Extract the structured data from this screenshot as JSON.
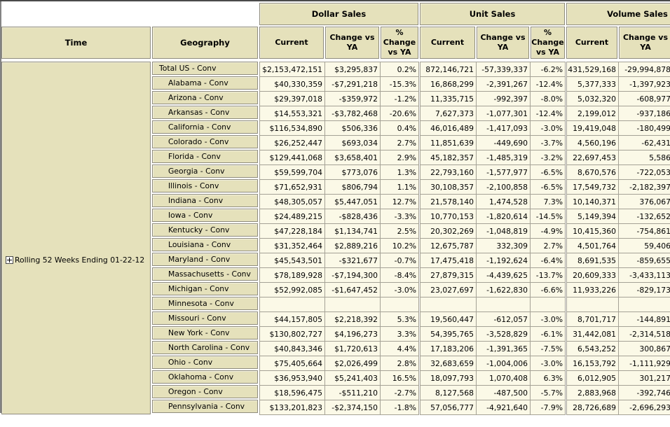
{
  "colors": {
    "header_fill": "#e5e1bb",
    "data_fill": "#fbf9e7",
    "cell_border": "#8f8c7e",
    "grid_line": "#a5a296",
    "frame_top": "#4a4a4a",
    "frame_left": "#838383",
    "text": "#000000"
  },
  "header": {
    "time": "Time",
    "geography": "Geography"
  },
  "groups": [
    {
      "key": "d",
      "label": "Dollar Sales",
      "cols": [
        "Current",
        "Change vs YA",
        "% Change vs YA"
      ]
    },
    {
      "key": "u",
      "label": "Unit Sales",
      "cols": [
        "Current",
        "Change vs YA",
        "% Change vs YA"
      ]
    },
    {
      "key": "v",
      "label": "Volume Sales",
      "cols": [
        "Current",
        "Change vs YA"
      ]
    }
  ],
  "time_member": {
    "label": "Rolling 52 Weeks Ending 01-22-12",
    "expand_icon": "plus-box"
  },
  "rows": [
    {
      "geo": "Total US - Conv",
      "level": 0,
      "d": [
        "$2,153,472,151",
        "$3,295,837",
        "0.2%"
      ],
      "u": [
        "872,146,721",
        "-57,339,337",
        "-6.2%"
      ],
      "v": [
        "431,529,168",
        "-29,994,878"
      ]
    },
    {
      "geo": "Alabama - Conv",
      "level": 1,
      "d": [
        "$40,330,359",
        "-$7,291,218",
        "-15.3%"
      ],
      "u": [
        "16,868,299",
        "-2,391,267",
        "-12.4%"
      ],
      "v": [
        "5,377,333",
        "-1,397,923"
      ]
    },
    {
      "geo": "Arizona - Conv",
      "level": 1,
      "d": [
        "$29,397,018",
        "-$359,972",
        "-1.2%"
      ],
      "u": [
        "11,335,715",
        "-992,397",
        "-8.0%"
      ],
      "v": [
        "5,032,320",
        "-608,977"
      ]
    },
    {
      "geo": "Arkansas - Conv",
      "level": 1,
      "d": [
        "$14,553,321",
        "-$3,782,468",
        "-20.6%"
      ],
      "u": [
        "7,627,373",
        "-1,077,301",
        "-12.4%"
      ],
      "v": [
        "2,199,012",
        "-937,186"
      ]
    },
    {
      "geo": "California - Conv",
      "level": 1,
      "d": [
        "$116,534,890",
        "$506,336",
        "0.4%"
      ],
      "u": [
        "46,016,489",
        "-1,417,093",
        "-3.0%"
      ],
      "v": [
        "19,419,048",
        "-180,499"
      ]
    },
    {
      "geo": "Colorado - Conv",
      "level": 1,
      "d": [
        "$26,252,447",
        "$693,034",
        "2.7%"
      ],
      "u": [
        "11,851,639",
        "-449,690",
        "-3.7%"
      ],
      "v": [
        "4,560,196",
        "-62,431"
      ]
    },
    {
      "geo": "Florida - Conv",
      "level": 1,
      "d": [
        "$129,441,068",
        "$3,658,401",
        "2.9%"
      ],
      "u": [
        "45,182,357",
        "-1,485,319",
        "-3.2%"
      ],
      "v": [
        "22,697,453",
        "5,586"
      ]
    },
    {
      "geo": "Georgia - Conv",
      "level": 1,
      "d": [
        "$59,599,704",
        "$773,076",
        "1.3%"
      ],
      "u": [
        "22,793,160",
        "-1,577,977",
        "-6.5%"
      ],
      "v": [
        "8,670,576",
        "-722,053"
      ]
    },
    {
      "geo": "Illinois - Conv",
      "level": 1,
      "d": [
        "$71,652,931",
        "$806,794",
        "1.1%"
      ],
      "u": [
        "30,108,357",
        "-2,100,858",
        "-6.5%"
      ],
      "v": [
        "17,549,732",
        "-2,182,397"
      ]
    },
    {
      "geo": "Indiana - Conv",
      "level": 1,
      "d": [
        "$48,305,057",
        "$5,447,051",
        "12.7%"
      ],
      "u": [
        "21,578,140",
        "1,474,528",
        "7.3%"
      ],
      "v": [
        "10,140,371",
        "376,067"
      ]
    },
    {
      "geo": "Iowa - Conv",
      "level": 1,
      "d": [
        "$24,489,215",
        "-$828,436",
        "-3.3%"
      ],
      "u": [
        "10,770,153",
        "-1,820,614",
        "-14.5%"
      ],
      "v": [
        "5,149,394",
        "-132,652"
      ]
    },
    {
      "geo": "Kentucky - Conv",
      "level": 1,
      "d": [
        "$47,228,184",
        "$1,134,741",
        "2.5%"
      ],
      "u": [
        "20,302,269",
        "-1,048,819",
        "-4.9%"
      ],
      "v": [
        "10,415,360",
        "-754,861"
      ]
    },
    {
      "geo": "Louisiana - Conv",
      "level": 1,
      "d": [
        "$31,352,464",
        "$2,889,216",
        "10.2%"
      ],
      "u": [
        "12,675,787",
        "332,309",
        "2.7%"
      ],
      "v": [
        "4,501,764",
        "59,406"
      ]
    },
    {
      "geo": "Maryland - Conv",
      "level": 1,
      "d": [
        "$45,543,501",
        "-$321,677",
        "-0.7%"
      ],
      "u": [
        "17,475,418",
        "-1,192,624",
        "-6.4%"
      ],
      "v": [
        "8,691,535",
        "-859,655"
      ]
    },
    {
      "geo": "Massachusetts - Conv",
      "level": 1,
      "d": [
        "$78,189,928",
        "-$7,194,300",
        "-8.4%"
      ],
      "u": [
        "27,879,315",
        "-4,439,625",
        "-13.7%"
      ],
      "v": [
        "20,609,333",
        "-3,433,113"
      ]
    },
    {
      "geo": "Michigan - Conv",
      "level": 1,
      "d": [
        "$52,992,085",
        "-$1,647,452",
        "-3.0%"
      ],
      "u": [
        "23,027,697",
        "-1,622,830",
        "-6.6%"
      ],
      "v": [
        "11,933,226",
        "-829,173"
      ]
    },
    {
      "geo": "Minnesota - Conv",
      "level": 1,
      "d": [
        "",
        "",
        ""
      ],
      "u": [
        "",
        "",
        ""
      ],
      "v": [
        "",
        ""
      ]
    },
    {
      "geo": "Missouri - Conv",
      "level": 1,
      "d": [
        "$44,157,805",
        "$2,218,392",
        "5.3%"
      ],
      "u": [
        "19,560,447",
        "-612,057",
        "-3.0%"
      ],
      "v": [
        "8,701,717",
        "-144,891"
      ]
    },
    {
      "geo": "New York - Conv",
      "level": 1,
      "d": [
        "$130,802,727",
        "$4,196,273",
        "3.3%"
      ],
      "u": [
        "54,395,765",
        "-3,528,829",
        "-6.1%"
      ],
      "v": [
        "31,442,081",
        "-2,314,518"
      ]
    },
    {
      "geo": "North Carolina - Conv",
      "level": 1,
      "d": [
        "$40,843,346",
        "$1,720,613",
        "4.4%"
      ],
      "u": [
        "17,183,206",
        "-1,391,365",
        "-7.5%"
      ],
      "v": [
        "6,543,252",
        "300,867"
      ]
    },
    {
      "geo": "Ohio - Conv",
      "level": 1,
      "d": [
        "$75,405,664",
        "$2,026,499",
        "2.8%"
      ],
      "u": [
        "32,683,659",
        "-1,004,006",
        "-3.0%"
      ],
      "v": [
        "16,153,792",
        "-1,111,929"
      ]
    },
    {
      "geo": "Oklahoma - Conv",
      "level": 1,
      "d": [
        "$36,953,940",
        "$5,241,403",
        "16.5%"
      ],
      "u": [
        "18,097,793",
        "1,070,408",
        "6.3%"
      ],
      "v": [
        "6,012,905",
        "301,217"
      ]
    },
    {
      "geo": "Oregon - Conv",
      "level": 1,
      "d": [
        "$18,596,475",
        "-$511,210",
        "-2.7%"
      ],
      "u": [
        "8,127,568",
        "-487,500",
        "-5.7%"
      ],
      "v": [
        "2,883,968",
        "-392,746"
      ]
    },
    {
      "geo": "Pennsylvania - Conv",
      "level": 1,
      "d": [
        "$133,201,823",
        "-$2,374,150",
        "-1.8%"
      ],
      "u": [
        "57,056,777",
        "-4,921,640",
        "-7.9%"
      ],
      "v": [
        "28,726,689",
        "-2,696,293"
      ]
    }
  ]
}
